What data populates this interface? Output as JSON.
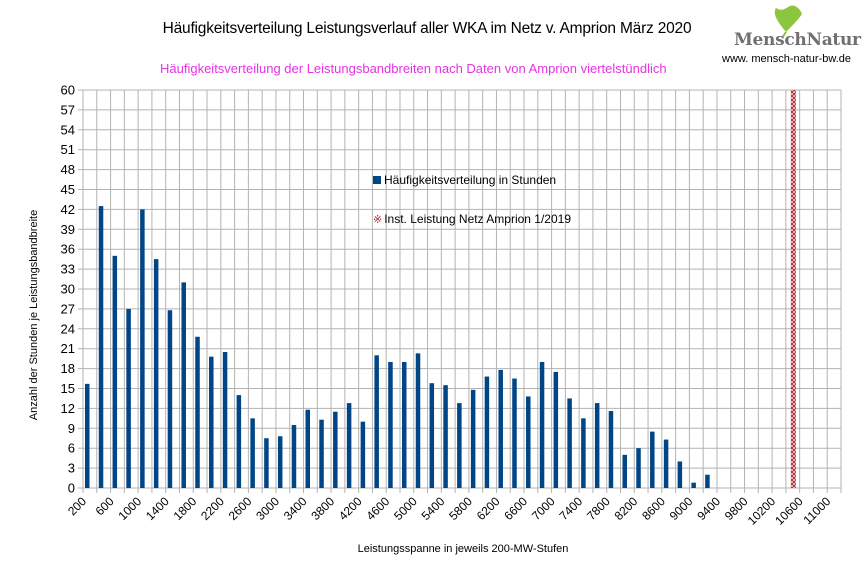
{
  "header": {
    "title": "Häufigkeitsverteilung Leistungsverlauf aller WKA im Netz v. Amprion März 2020",
    "subtitle": "Häufigkeitsverteilung der Leistungsbandbreiten nach Daten von Amprion viertelstündlich",
    "logo_text": "MenschNatur",
    "logo_url": "www. mensch-natur-bw.de"
  },
  "colors": {
    "bar": "#004586",
    "marker_line": "#b3313a",
    "subtitle": "#e633e6",
    "grid": "#b3b3b3"
  },
  "chart_data": {
    "type": "bar",
    "title": "Häufigkeitsverteilung Leistungsverlauf aller WKA im Netz v. Amprion März 2020",
    "subtitle": "Häufigkeitsverteilung der Leistungsbandbreiten nach Daten von Amprion viertelstündlich",
    "xlabel": "Leistungsspanne in jeweils 200-MW-Stufen",
    "ylabel": "Anzahl der Stunden je Leistungsbandbreite",
    "ylim": [
      0,
      60
    ],
    "ytick_step": 3,
    "yticks": [
      "0",
      "3",
      "6",
      "9",
      "12",
      "15",
      "18",
      "21",
      "24",
      "27",
      "30",
      "33",
      "36",
      "39",
      "42",
      "45",
      "48",
      "51",
      "54",
      "57",
      "60"
    ],
    "grid": true,
    "legend_position": "inside-center-top",
    "categories": [
      200,
      400,
      600,
      800,
      1000,
      1200,
      1400,
      1600,
      1800,
      2000,
      2200,
      2400,
      2600,
      2800,
      3000,
      3200,
      3400,
      3600,
      3800,
      4000,
      4200,
      4400,
      4600,
      4800,
      5000,
      5200,
      5400,
      5600,
      5800,
      6000,
      6200,
      6400,
      6600,
      6800,
      7000,
      7200,
      7400,
      7600,
      7800,
      8000,
      8200,
      8400,
      8600,
      8800,
      9000,
      9200,
      9400,
      9600,
      9800,
      10000,
      10200,
      10400,
      10600,
      10800,
      11000
    ],
    "xtick_labels": [
      "200",
      "600",
      "1000",
      "1400",
      "1800",
      "2200",
      "2600",
      "3000",
      "3400",
      "3800",
      "4200",
      "4600",
      "5000",
      "5400",
      "5800",
      "6200",
      "6600",
      "7000",
      "7400",
      "7800",
      "8200",
      "8600",
      "9000",
      "9400",
      "9800",
      "10200",
      "10600",
      "11000"
    ],
    "series": [
      {
        "name": "Häufigkeitsverteilung in Stunden",
        "values": [
          15.7,
          42.5,
          35,
          27,
          42,
          34.5,
          26.8,
          31,
          22.8,
          19.8,
          20.5,
          14,
          10.5,
          7.5,
          7.8,
          9.5,
          11.8,
          10.3,
          11.5,
          12.8,
          10,
          20,
          19,
          19,
          20.3,
          15.8,
          15.5,
          12.8,
          14.8,
          16.8,
          17.8,
          16.5,
          13.8,
          19,
          17.5,
          13.5,
          10.5,
          12.8,
          11.6,
          5,
          6,
          8.5,
          7.3,
          4,
          0.8,
          2,
          0,
          0,
          0,
          0,
          0,
          0,
          0,
          0,
          0
        ]
      },
      {
        "name": "Inst. Leistung Netz Amprion 1/2019",
        "category": 10400,
        "value": 60
      }
    ]
  }
}
